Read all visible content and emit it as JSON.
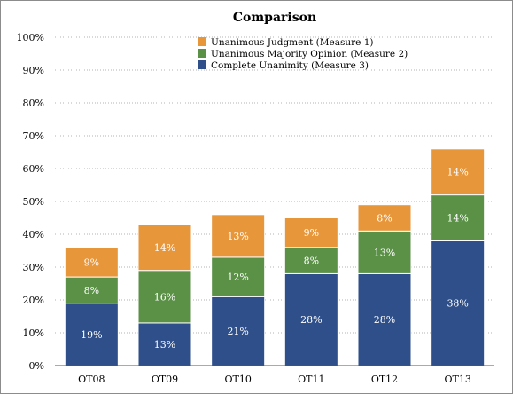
{
  "chart_data": {
    "type": "bar",
    "stacked": true,
    "title": "Comparison",
    "xlabel": "",
    "ylabel": "",
    "categories": [
      "OT08",
      "OT09",
      "OT10",
      "OT11",
      "OT12",
      "OT13"
    ],
    "series": [
      {
        "name": "Complete Unanimity (Measure 3)",
        "color": "#2e4f8a",
        "values": [
          19,
          13,
          21,
          28,
          28,
          38
        ],
        "labels": [
          "19%",
          "13%",
          "21%",
          "28%",
          "28%",
          "38%"
        ]
      },
      {
        "name": "Unanimous Majority Opinion (Measure 2)",
        "color": "#5b9147",
        "values": [
          8,
          16,
          12,
          8,
          13,
          14
        ],
        "labels": [
          "8%",
          "16%",
          "12%",
          "8%",
          "13%",
          "14%"
        ]
      },
      {
        "name": "Unanimous Judgment (Measure 1)",
        "color": "#e8963a",
        "values": [
          9,
          14,
          13,
          9,
          8,
          14
        ],
        "labels": [
          "9%",
          "14%",
          "13%",
          "9%",
          "8%",
          "14%"
        ]
      }
    ],
    "ylim": [
      0,
      100
    ],
    "yticks": [
      0,
      10,
      20,
      30,
      40,
      50,
      60,
      70,
      80,
      90,
      100
    ],
    "ytick_labels": [
      "0%",
      "10%",
      "20%",
      "30%",
      "40%",
      "50%",
      "60%",
      "70%",
      "80%",
      "90%",
      "100%"
    ],
    "legend": {
      "position": "top-center",
      "order": [
        "Unanimous Judgment (Measure 1)",
        "Unanimous Majority Opinion (Measure 2)",
        "Complete Unanimity (Measure 3)"
      ]
    },
    "grid": "horizontal-dotted"
  }
}
